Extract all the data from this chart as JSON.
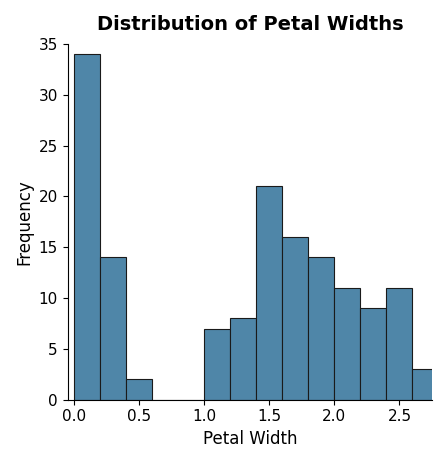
{
  "title": "Distribution of Petal Widths",
  "xlabel": "Petal Width",
  "ylabel": "Frequency",
  "bar_color": "#4f86a8",
  "edge_color": "#1a1a1a",
  "bin_edges": [
    0.0,
    0.2,
    0.4,
    0.6,
    0.8,
    1.0,
    1.2,
    1.4,
    1.6,
    1.8,
    2.0,
    2.2,
    2.4,
    2.6,
    2.8
  ],
  "frequencies": [
    34,
    14,
    2,
    0,
    0,
    7,
    8,
    21,
    16,
    14,
    11,
    9,
    11,
    3
  ],
  "xlim": [
    -0.05,
    2.75
  ],
  "ylim": [
    0,
    35
  ],
  "yticks": [
    0,
    5,
    10,
    15,
    20,
    25,
    30,
    35
  ],
  "xticks": [
    0.0,
    0.5,
    1.0,
    1.5,
    2.0,
    2.5
  ],
  "title_fontsize": 14,
  "axis_label_fontsize": 12,
  "tick_fontsize": 11,
  "bg_color": "#ffffff",
  "linewidth": 0.8
}
